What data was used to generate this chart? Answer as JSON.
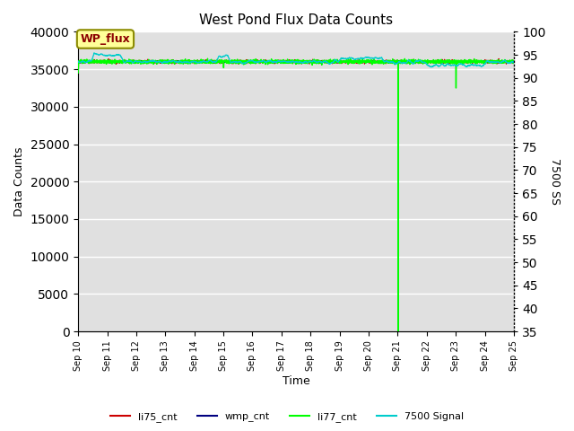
{
  "title": "West Pond Flux Data Counts",
  "xlabel": "Time",
  "ylabel": "Data Counts",
  "ylabel2": "7500 SS",
  "annotation_text": "WP_flux",
  "annotation_color": "#8B0000",
  "annotation_bg": "#FFFF99",
  "annotation_border": "#8B8B00",
  "ylim": [
    0,
    40000
  ],
  "ylim2": [
    35,
    100
  ],
  "yticks": [
    0,
    5000,
    10000,
    15000,
    20000,
    25000,
    30000,
    35000,
    40000
  ],
  "yticks2": [
    35,
    40,
    45,
    50,
    55,
    60,
    65,
    70,
    75,
    80,
    85,
    90,
    95,
    100
  ],
  "x_tick_labels": [
    "Sep 10",
    "Sep 11",
    "Sep 12",
    "Sep 13",
    "Sep 14",
    "Sep 15",
    "Sep 16",
    "Sep 17",
    "Sep 18",
    "Sep 19",
    "Sep 20",
    "Sep 21",
    "Sep 22",
    "Sep 23",
    "Sep 24",
    "Sep 25"
  ],
  "bg_color": "#E0E0E0",
  "grid_color": "#FFFFFF",
  "line_colors": {
    "li75_cnt": "#CC0000",
    "wmp_cnt": "#000080",
    "li77_cnt": "#00FF00",
    "signal": "#00CCCC"
  },
  "legend_labels": [
    "li75_cnt",
    "wmp_cnt",
    "li77_cnt",
    "7500 Signal"
  ],
  "n_points": 3000,
  "base_val": 36000,
  "signal_base": 93.5
}
